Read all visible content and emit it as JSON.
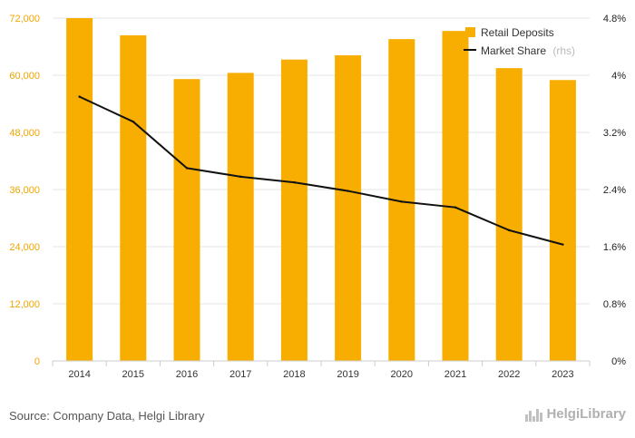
{
  "chart_data": {
    "type": "bar",
    "categories": [
      "2014",
      "2015",
      "2016",
      "2017",
      "2018",
      "2019",
      "2020",
      "2021",
      "2022",
      "2023"
    ],
    "series": [
      {
        "name": "Retail Deposits",
        "type": "bar",
        "axis": "left",
        "color": "#f7ae00",
        "values": [
          72000,
          68400,
          59200,
          60500,
          63300,
          64200,
          67600,
          69300,
          61500,
          59000
        ]
      },
      {
        "name": "Market Share",
        "type": "line",
        "axis": "right",
        "color": "#111111",
        "values": [
          3.7,
          3.35,
          2.7,
          2.58,
          2.5,
          2.38,
          2.23,
          2.15,
          1.83,
          1.63
        ]
      }
    ],
    "y_left": {
      "min": 0,
      "max": 72000,
      "ticks": [
        "0",
        "12,000",
        "24,000",
        "36,000",
        "48,000",
        "60,000",
        "72,000"
      ],
      "tick_values": [
        0,
        12000,
        24000,
        36000,
        48000,
        60000,
        72000
      ]
    },
    "y_right": {
      "min": 0,
      "max": 4.8,
      "ticks": [
        "0%",
        "0.8%",
        "1.6%",
        "2.4%",
        "3.2%",
        "4%",
        "4.8%"
      ],
      "tick_values": [
        0,
        0.8,
        1.6,
        2.4,
        3.2,
        4.0,
        4.8
      ]
    },
    "grid": true,
    "legend_position": "top-right",
    "legend": [
      {
        "label": "Retail Deposits",
        "suffix": ""
      },
      {
        "label": "Market Share",
        "suffix": "(rhs)"
      }
    ]
  },
  "footer": {
    "source": "Source: Company Data, Helgi Library",
    "logo_text": "HelgiLibrary"
  }
}
